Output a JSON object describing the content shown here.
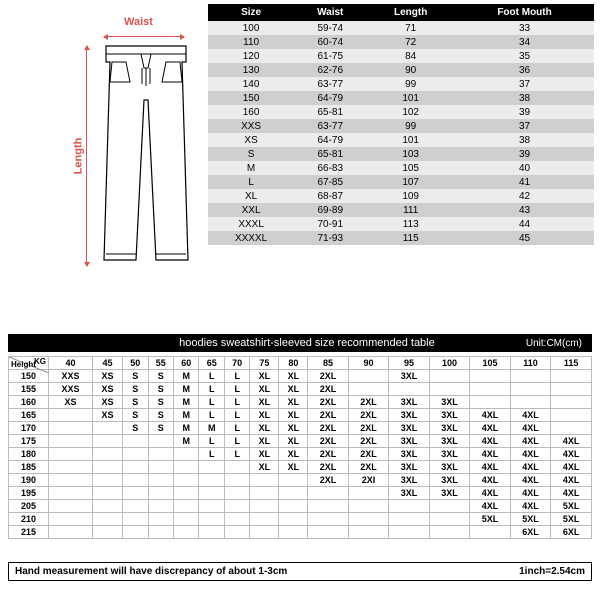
{
  "pants": {
    "headers": [
      "Size",
      "Waist",
      "Length",
      "Foot Mouth"
    ],
    "rows": [
      [
        "100",
        "59-74",
        "71",
        "33"
      ],
      [
        "110",
        "60-74",
        "72",
        "34"
      ],
      [
        "120",
        "61-75",
        "84",
        "35"
      ],
      [
        "130",
        "62-76",
        "90",
        "36"
      ],
      [
        "140",
        "63-77",
        "99",
        "37"
      ],
      [
        "150",
        "64-79",
        "101",
        "38"
      ],
      [
        "160",
        "65-81",
        "102",
        "39"
      ],
      [
        "XXS",
        "63-77",
        "99",
        "37"
      ],
      [
        "XS",
        "64-79",
        "101",
        "38"
      ],
      [
        "S",
        "65-81",
        "103",
        "39"
      ],
      [
        "M",
        "66-83",
        "105",
        "40"
      ],
      [
        "L",
        "67-85",
        "107",
        "41"
      ],
      [
        "XL",
        "68-87",
        "109",
        "42"
      ],
      [
        "XXL",
        "69-89",
        "111",
        "43"
      ],
      [
        "XXXL",
        "70-91",
        "113",
        "44"
      ],
      [
        "XXXXL",
        "71-93",
        "115",
        "45"
      ]
    ]
  },
  "diagram": {
    "waist_label": "Waist",
    "length_label": "Length"
  },
  "hoodies": {
    "banner": "hoodies sweatshirt-sleeved size recommended table",
    "unit": "Unit:CM(cm)",
    "kg_label": "KG",
    "height_label": "Height",
    "weights": [
      "40",
      "45",
      "50",
      "55",
      "60",
      "65",
      "70",
      "75",
      "80",
      "85",
      "90",
      "95",
      "100",
      "105",
      "110",
      "115"
    ],
    "rows": [
      {
        "h": "150",
        "c": [
          "XXS",
          "XS",
          "S",
          "S",
          "M",
          "L",
          "L",
          "XL",
          "XL",
          "2XL",
          "",
          "3XL",
          "",
          "",
          "",
          ""
        ]
      },
      {
        "h": "155",
        "c": [
          "XXS",
          "XS",
          "S",
          "S",
          "M",
          "L",
          "L",
          "XL",
          "XL",
          "2XL",
          "",
          "",
          "",
          "",
          "",
          ""
        ]
      },
      {
        "h": "160",
        "c": [
          "XS",
          "XS",
          "S",
          "S",
          "M",
          "L",
          "L",
          "XL",
          "XL",
          "2XL",
          "2XL",
          "3XL",
          "3XL",
          "",
          "",
          ""
        ]
      },
      {
        "h": "165",
        "c": [
          "",
          "XS",
          "S",
          "S",
          "M",
          "L",
          "L",
          "XL",
          "XL",
          "2XL",
          "2XL",
          "3XL",
          "3XL",
          "4XL",
          "4XL",
          ""
        ]
      },
      {
        "h": "170",
        "c": [
          "",
          "",
          "S",
          "S",
          "M",
          "M",
          "L",
          "XL",
          "XL",
          "2XL",
          "2XL",
          "3XL",
          "3XL",
          "4XL",
          "4XL",
          ""
        ]
      },
      {
        "h": "175",
        "c": [
          "",
          "",
          "",
          "",
          "M",
          "L",
          "L",
          "XL",
          "XL",
          "2XL",
          "2XL",
          "3XL",
          "3XL",
          "4XL",
          "4XL",
          "4XL"
        ]
      },
      {
        "h": "180",
        "c": [
          "",
          "",
          "",
          "",
          "",
          "L",
          "L",
          "XL",
          "XL",
          "2XL",
          "2XL",
          "3XL",
          "3XL",
          "4XL",
          "4XL",
          "4XL"
        ]
      },
      {
        "h": "185",
        "c": [
          "",
          "",
          "",
          "",
          "",
          "",
          "",
          "XL",
          "XL",
          "2XL",
          "2XL",
          "3XL",
          "3XL",
          "4XL",
          "4XL",
          "4XL"
        ]
      },
      {
        "h": "190",
        "c": [
          "",
          "",
          "",
          "",
          "",
          "",
          "",
          "",
          "",
          "2XL",
          "2XI",
          "3XL",
          "3XL",
          "4XL",
          "4XL",
          "4XL"
        ]
      },
      {
        "h": "195",
        "c": [
          "",
          "",
          "",
          "",
          "",
          "",
          "",
          "",
          "",
          "",
          "",
          "3XL",
          "3XL",
          "4XL",
          "4XL",
          "4XL"
        ]
      },
      {
        "h": "205",
        "c": [
          "",
          "",
          "",
          "",
          "",
          "",
          "",
          "",
          "",
          "",
          "",
          "",
          "",
          "4XL",
          "4XL",
          "5XL"
        ]
      },
      {
        "h": "210",
        "c": [
          "",
          "",
          "",
          "",
          "",
          "",
          "",
          "",
          "",
          "",
          "",
          "",
          "",
          "5XL",
          "5XL",
          "5XL"
        ]
      },
      {
        "h": "215",
        "c": [
          "",
          "",
          "",
          "",
          "",
          "",
          "",
          "",
          "",
          "",
          "",
          "",
          "",
          "",
          "6XL",
          "6XL"
        ]
      }
    ]
  },
  "footer": {
    "note": "Hand measurement will have discrepancy of about  1-3cm",
    "conv": "1inch=2.54cm"
  }
}
